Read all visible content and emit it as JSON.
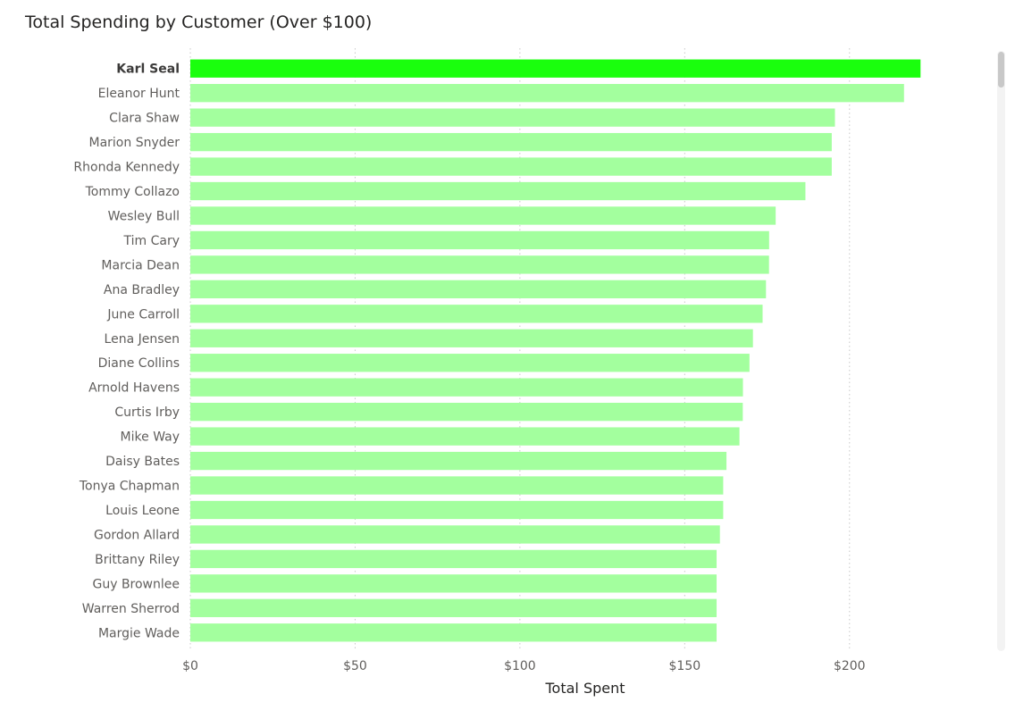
{
  "chart_data": {
    "type": "bar",
    "orientation": "horizontal",
    "title": "Total Spending by Customer (Over $100)",
    "xlabel": "Total Spent",
    "ylabel": "",
    "xlim": [
      0,
      225
    ],
    "x_ticks": [
      0,
      50,
      100,
      150,
      200
    ],
    "x_tick_labels": [
      "$0",
      "$50",
      "$100",
      "$150",
      "$200"
    ],
    "grid": "vertical dotted",
    "categories": [
      "Karl Seal",
      "Eleanor Hunt",
      "Clara Shaw",
      "Marion Snyder",
      "Rhonda Kennedy",
      "Tommy Collazo",
      "Wesley Bull",
      "Tim Cary",
      "Marcia Dean",
      "Ana Bradley",
      "June Carroll",
      "Lena Jensen",
      "Diane Collins",
      "Arnold Havens",
      "Curtis Irby",
      "Mike Way",
      "Daisy Bates",
      "Tonya Chapman",
      "Louis Leone",
      "Gordon Allard",
      "Brittany Riley",
      "Guy Brownlee",
      "Warren Sherrod",
      "Margie Wade"
    ],
    "values": [
      221.55,
      216.54,
      195.58,
      194.61,
      194.61,
      186.62,
      177.6,
      175.61,
      175.58,
      174.66,
      173.63,
      170.7,
      169.65,
      167.67,
      167.62,
      166.61,
      162.67,
      161.68,
      161.68,
      160.68,
      159.68,
      159.68,
      159.68,
      159.68
    ],
    "highlighted": "Karl Seal",
    "colors": {
      "highlight": "#1aff0d",
      "bar": "#a3ff9e",
      "grid": "#c8c8c8",
      "label": "#605e5c",
      "highlight_label": "#3b3a39",
      "title": "#252423"
    }
  }
}
